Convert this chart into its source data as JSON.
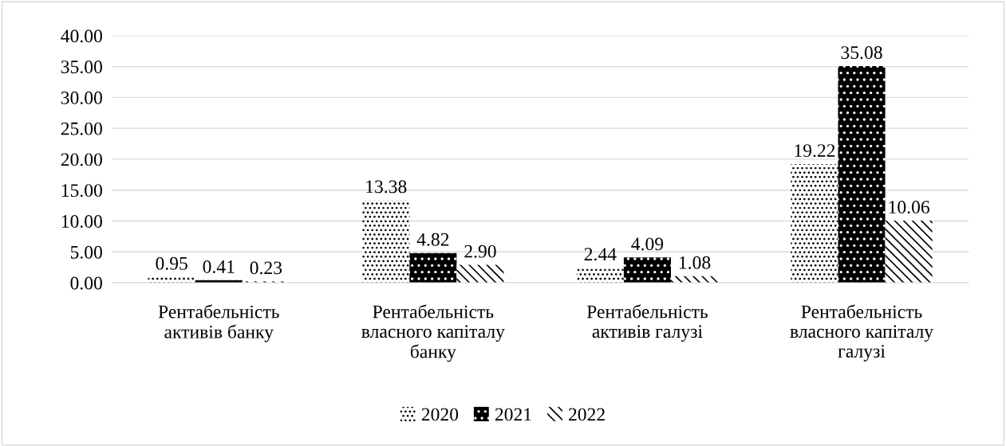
{
  "chart_data": {
    "type": "bar",
    "categories": [
      "Рентабельність\nактивів банку",
      "Рентабельність\nвласного капіталу\nбанку",
      "Рентабельність\nактивів галузі",
      "Рентабельність\nвласного капіталу\nгалузі"
    ],
    "series": [
      {
        "name": "2020",
        "color": "#ffffff",
        "values": [
          0.95,
          13.38,
          2.44,
          19.22
        ],
        "value_labels": [
          "0.95",
          "13.38",
          "2.44",
          "19.22"
        ]
      },
      {
        "name": "2021",
        "color": "#000000",
        "values": [
          0.41,
          4.82,
          4.09,
          35.08
        ],
        "value_labels": [
          "0.41",
          "4.82",
          "4.09",
          "35.08"
        ]
      },
      {
        "name": "2022",
        "color": "#ffffff",
        "values": [
          0.23,
          2.9,
          1.08,
          10.06
        ],
        "value_labels": [
          "0.23",
          "2.90",
          "1.08",
          "10.06"
        ]
      }
    ],
    "ylim": [
      0,
      40
    ],
    "yticks": [
      {
        "value": 0,
        "label": "0.00"
      },
      {
        "value": 5,
        "label": "5.00"
      },
      {
        "value": 10,
        "label": "10.00"
      },
      {
        "value": 15,
        "label": "15.00"
      },
      {
        "value": 20,
        "label": "20.00"
      },
      {
        "value": 25,
        "label": "25.00"
      },
      {
        "value": 30,
        "label": "30.00"
      },
      {
        "value": 35,
        "label": "35.00"
      },
      {
        "value": 40,
        "label": "40.00"
      }
    ],
    "grid": "y",
    "legend": "bottom"
  }
}
